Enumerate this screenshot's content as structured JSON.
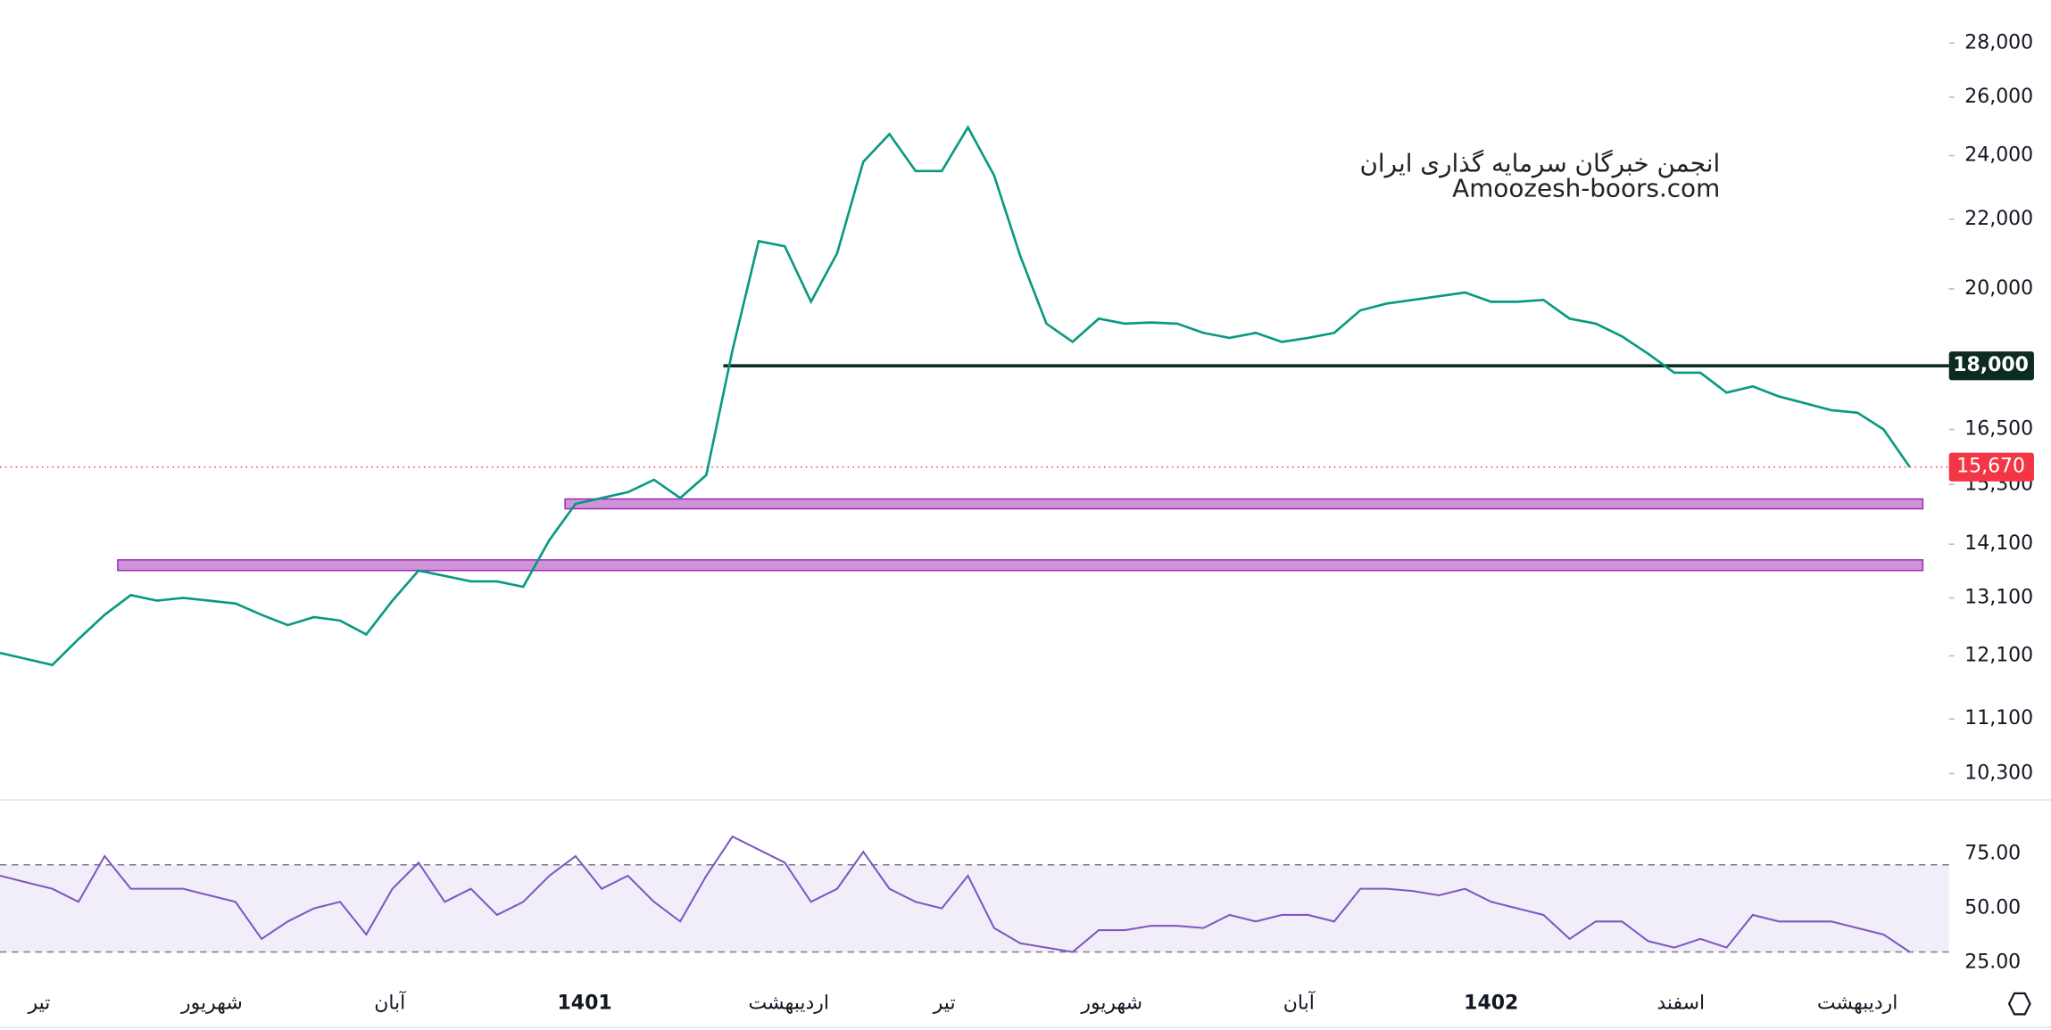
{
  "chart_data": {
    "type": "line",
    "log_scale": true,
    "watermark": [
      "انجمن خبرگان سرمایه گذاری ایران",
      "Amoozesh-boors.com"
    ],
    "xlim": [
      0,
      74.5
    ],
    "xticks": [
      {
        "value": 1.5,
        "label": "تیر"
      },
      {
        "value": 8.1,
        "label": "شهریور"
      },
      {
        "value": 14.9,
        "label": "آبان"
      },
      {
        "value": 22.35,
        "label": "1401"
      },
      {
        "value": 30.15,
        "label": "اردیبهشت"
      },
      {
        "value": 36.1,
        "label": "تیر"
      },
      {
        "value": 42.5,
        "label": "شهریور"
      },
      {
        "value": 49.65,
        "label": "آبان"
      },
      {
        "value": 57,
        "label": "1402"
      },
      {
        "value": 64.25,
        "label": "اسفند"
      },
      {
        "value": 71,
        "label": "اردیبهشت"
      }
    ],
    "bold_xticks": [
      3,
      8
    ],
    "ylim": [
      9970,
      29700
    ],
    "yticks": [
      {
        "value": 28000,
        "label": "28,000"
      },
      {
        "value": 26000,
        "label": "26,000"
      },
      {
        "value": 24000,
        "label": "24,000"
      },
      {
        "value": 22000,
        "label": "22,000"
      },
      {
        "value": 20000,
        "label": "20,000"
      },
      {
        "value": 16500,
        "label": "16,500"
      },
      {
        "value": 15300,
        "label": "15,300"
      },
      {
        "value": 14100,
        "label": "14,100"
      },
      {
        "value": 13100,
        "label": "13,100"
      },
      {
        "value": 12100,
        "label": "12,100"
      },
      {
        "value": 11100,
        "label": "11,100"
      },
      {
        "value": 10300,
        "label": "10,300"
      }
    ],
    "series": [
      {
        "name": "price",
        "color": "#089981",
        "values": [
          12150,
          12050,
          11950,
          12380,
          12800,
          13150,
          13050,
          13100,
          13050,
          13000,
          12800,
          12620,
          12760,
          12700,
          12460,
          13050,
          13600,
          13500,
          13400,
          13400,
          13300,
          14180,
          14900,
          15020,
          15140,
          15400,
          15020,
          15500,
          18390,
          21350,
          21200,
          19650,
          21000,
          23800,
          24720,
          23500,
          23500,
          24950,
          23360,
          20920,
          19070,
          18600,
          19200,
          19070,
          19100,
          19070,
          18830,
          18700,
          18830,
          18600,
          18700,
          18830,
          19420,
          19600,
          19700,
          19800,
          19900,
          19650,
          19650,
          19700,
          19200,
          19070,
          18740,
          18300,
          17830,
          17830,
          17350,
          17500,
          17260,
          17100,
          16940,
          16880,
          16500,
          15670
        ]
      }
    ],
    "level": {
      "value": 18000,
      "label": "18,000",
      "start": 27.65,
      "color": "#0c2b22"
    },
    "last_price": {
      "value": 15670,
      "label": "15,670",
      "color": "#f23645"
    },
    "zones": [
      {
        "start": 21.6,
        "low": 14800,
        "high": 15000
      },
      {
        "start": 4.5,
        "low": 13600,
        "high": 13800
      }
    ],
    "zone_color": "#ce93d8",
    "rsi": {
      "color": "#7e57c2",
      "ylim": [
        14,
        95
      ],
      "yticks": [
        {
          "value": 75,
          "label": "75.00"
        },
        {
          "value": 50,
          "label": "50.00"
        },
        {
          "value": 25,
          "label": "25.00"
        }
      ],
      "bands": [
        30,
        70
      ],
      "values": [
        65,
        62,
        59,
        53,
        74,
        59,
        59,
        59,
        56,
        53,
        36,
        44,
        50,
        53,
        38,
        59,
        71,
        53,
        59,
        47,
        53,
        65,
        74,
        59,
        65,
        53,
        44,
        65,
        83,
        77,
        71,
        53,
        59,
        76,
        59,
        53,
        50,
        65,
        41,
        34,
        32,
        30,
        40,
        40,
        42,
        42,
        41,
        47,
        44,
        47,
        47,
        44,
        59,
        59,
        58,
        56,
        59,
        53,
        50,
        47,
        36,
        44,
        44,
        35,
        32,
        36,
        32,
        47,
        44,
        44,
        44,
        41,
        38,
        30
      ]
    }
  }
}
